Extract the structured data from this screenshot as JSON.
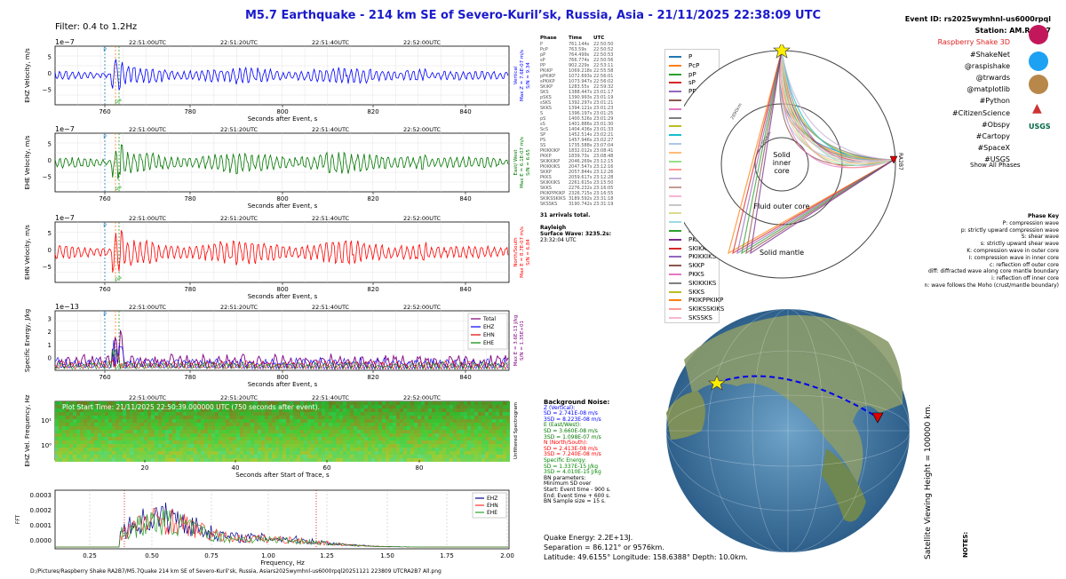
{
  "title": "M5.7 Earthquake - 214 km SE of Severo-Kuril’sk, Russia, Asia -  21/11/2025 22:38:09 UTC",
  "filter": "Filter: 0.4 to 1.2Hz",
  "filepath": "D:/Pictures/Raspberry Shake RA2B7/M5.7Quake 214 km SE of Severo-Kuril’sk, Russia, Asiars2025wymhnl-us6000rpql20251121 223809 UTCRA2B7 All.png",
  "header_right": {
    "event_id": "Event ID: rs2025wymhnl-us6000rpql",
    "station": "Station: AM.RA2B7",
    "rs3d": "Raspberry Shake 3D",
    "tags": [
      "#ShakeNet",
      "@raspishake",
      "@trwards",
      "@matplotlib",
      "#Python",
      "#CitizenScience",
      "#Obspy",
      "#Cartopy",
      "#SpaceX",
      "#USGS"
    ]
  },
  "colors": {
    "title": "#1a1acc",
    "ehz": "#0000ff",
    "ehe": "#007700",
    "ehn": "#ff0000",
    "energy_total": "#800080",
    "rs3d": "#d22"
  },
  "icons": [
    "raspberry-shake-icon",
    "twitter-icon",
    "matplotlib-icon",
    "cartopy-icon",
    "spacex-icon",
    "usgs-icon"
  ],
  "time_labels": [
    "22:51:00UTC",
    "22:51:20UTC",
    "22:51:40UTC",
    "22:52:00UTC"
  ],
  "seis_xticks": [
    "760",
    "780",
    "800",
    "820",
    "840"
  ],
  "xlabel_event": "Seconds after Event, s",
  "xlabel_trace": "Seconds after Start of Trace, s",
  "panels": {
    "ehz": {
      "exp": "1e−7",
      "ylabel": "EHZ Velocity, m/s",
      "yticks": [
        "5",
        "0",
        "−5"
      ],
      "side": "Vertical\nMax Z = 7.6E-07 m/s\nS/N = 9.34"
    },
    "ehe": {
      "exp": "1e−7",
      "ylabel": "EHE Velocity, m/s",
      "yticks": [
        "5",
        "0",
        "−5"
      ],
      "side": "East/ West\nMax E = 6.1E-07 m/s\nS/N = 6.65"
    },
    "ehn": {
      "exp": "1e−7",
      "ylabel": "EHN Velocity, m/s",
      "yticks": [
        "5",
        "0",
        "−5"
      ],
      "side": "North/South\nMax E = 8.7E-07 m/s\nS/N = 6.84"
    },
    "energy": {
      "exp": "1e−13",
      "ylabel": "Specific Energy, J/kg",
      "yticks": [
        "3",
        "2",
        "1",
        "0"
      ],
      "side": "Max E = 3.6E-13 J/kg\nS/N = 1.35E+01",
      "legend": [
        "Total",
        "EHZ",
        "EHN",
        "EHE"
      ]
    },
    "spec": {
      "ylabel": "EHZ Vel. Frequency, Hz",
      "yticks": [
        "10¹",
        "10⁰"
      ],
      "xticks": [
        "20",
        "40",
        "60",
        "80"
      ],
      "note": "Plot Start Time: 21/11/2025 22:50:39.000000 UTC (750 seconds after event).",
      "side": "Unfiltered Spectrogram"
    },
    "fft": {
      "ylabel": "FFT",
      "yticks": [
        "0.0003",
        "0.0002",
        "0.0001",
        "0.0000"
      ],
      "xticks": [
        "0.25",
        "0.50",
        "0.75",
        "1.00",
        "1.25",
        "1.50",
        "1.75",
        "2.00"
      ],
      "xlabel": "Frequency, Hz",
      "legend": [
        "EHZ",
        "EHN",
        "EHE"
      ]
    }
  },
  "phase_labels": [
    "P",
    "PcP",
    "pP"
  ],
  "arrivals": {
    "header": [
      "Phase",
      "Time",
      "UTC"
    ],
    "rows": [
      [
        "P",
        "761.144s",
        "22:50:50"
      ],
      [
        "PcP",
        "763.59s",
        "22:50:52"
      ],
      [
        "pP",
        "764.499s",
        "22:50:53"
      ],
      [
        "sP",
        "766.774s",
        "22:50:56"
      ],
      [
        "PP",
        "902.229s",
        "22:53:11"
      ],
      [
        "PKiKP",
        "1069.218s",
        "22:55:58"
      ],
      [
        "pPKiKP",
        "1072.693s",
        "22:56:01"
      ],
      [
        "sPKiKP",
        "1073.947s",
        "22:56:02"
      ],
      [
        "SKiKP",
        "1283.55s",
        "22:59:32"
      ],
      [
        "SKS",
        "1388.447s",
        "23:01:17"
      ],
      [
        "pSKS",
        "1390.993s",
        "23:01:19"
      ],
      [
        "sSKS",
        "1392.297s",
        "23:01:21"
      ],
      [
        "SKKS",
        "1394.121s",
        "23:01:23"
      ],
      [
        "S",
        "1396.197s",
        "23:01:25"
      ],
      [
        "pS",
        "1400.526s",
        "23:01:29"
      ],
      [
        "sS",
        "1401.886s",
        "23:01:30"
      ],
      [
        "ScS",
        "1404.436s",
        "23:01:33"
      ],
      [
        "SP",
        "1452.514s",
        "23:02:21"
      ],
      [
        "PS",
        "1457.946s",
        "23:02:27"
      ],
      [
        "SS",
        "1735.588s",
        "23:07:04"
      ],
      [
        "PKIKKIKP",
        "1832.012s",
        "23:08:41"
      ],
      [
        "PKKP",
        "1839.73s",
        "23:08:48"
      ],
      [
        "SKIKKIKP",
        "2046.269s",
        "23:12:15"
      ],
      [
        "PKIKKIKS",
        "2047.547s",
        "23:12:16"
      ],
      [
        "SKKP",
        "2057.844s",
        "23:12:26"
      ],
      [
        "PKKS",
        "2059.617s",
        "23:12:28"
      ],
      [
        "SKIKKIKS",
        "2261.615s",
        "23:15:50"
      ],
      [
        "SKKS",
        "2276.232s",
        "23:16:05"
      ],
      [
        "PKIKPPKIKP",
        "2326.715s",
        "23:16:55"
      ],
      [
        "SKIKSSKIKS",
        "3189.592s",
        "23:31:18"
      ],
      [
        "SKSSKS",
        "3190.742s",
        "23:31:19"
      ]
    ],
    "total": "31 arrivals total.",
    "rayleigh_label": "Rayleigh",
    "rayleigh": "Surface Wave: 3235.2s:",
    "rayleigh_time": "23:32:04 UTC"
  },
  "phase_legend": [
    {
      "name": "P",
      "color": "#1f77b4"
    },
    {
      "name": "PcP",
      "color": "#ff7f0e"
    },
    {
      "name": "pP",
      "color": "#2ca02c"
    },
    {
      "name": "sP",
      "color": "#d62728"
    },
    {
      "name": "PP",
      "color": "#9467bd"
    },
    {
      "name": "PKiKP",
      "color": "#8c564b"
    },
    {
      "name": "pPKiKP",
      "color": "#e377c2"
    },
    {
      "name": "sPKiKP",
      "color": "#7f7f7f"
    },
    {
      "name": "SKiKP",
      "color": "#bcbd22"
    },
    {
      "name": "SKS",
      "color": "#17becf"
    },
    {
      "name": "pSKS",
      "color": "#aec7e8"
    },
    {
      "name": "sSKS",
      "color": "#ffbb78"
    },
    {
      "name": "SKKS",
      "color": "#98df8a"
    },
    {
      "name": "S",
      "color": "#ff9896"
    },
    {
      "name": "pS",
      "color": "#c5b0d5"
    },
    {
      "name": "sS",
      "color": "#c49c94"
    },
    {
      "name": "ScS",
      "color": "#f7b6d2"
    },
    {
      "name": "SP",
      "color": "#c7c7c7"
    },
    {
      "name": "PS",
      "color": "#dbdb8d"
    },
    {
      "name": "SS",
      "color": "#9edae5"
    },
    {
      "name": "PKIKKIKP",
      "color": "#2ca02c"
    },
    {
      "name": "PKKP",
      "color": "#7b2d8e"
    },
    {
      "name": "SKIKKIKP",
      "color": "#d62728"
    },
    {
      "name": "PKIKKIKS",
      "color": "#9467bd"
    },
    {
      "name": "SKKP",
      "color": "#8c564b"
    },
    {
      "name": "PKKS",
      "color": "#e377c2"
    },
    {
      "name": "SKIKKIKS",
      "color": "#7f7f7f"
    },
    {
      "name": "SKKS",
      "color": "#bcbd22"
    },
    {
      "name": "PKIKPPKIKP",
      "color": "#ff7f0e"
    },
    {
      "name": "SKIKSSKIKS",
      "color": "#ff9896"
    },
    {
      "name": "SKSSKS",
      "color": "#f7b6d2"
    }
  ],
  "earth": {
    "inner": "Solid\ninner\ncore",
    "outer": "Fluid outer core",
    "mantle": "Solid mantle",
    "station": "RA2B7",
    "r1": "1200km",
    "r2": "2890km"
  },
  "show_all": "Show All Phases",
  "phase_key": {
    "title": "Phase Key",
    "lines": [
      "P:   compression wave",
      "p:   strictly upward compression wave",
      "S:   shear wave",
      "s:   strictly upward shear wave",
      "K:   compression wave in outer core",
      "I:   compression wave in inner core",
      "c:   reflection off outer core",
      "diff:  diffracted wave along core mantle boundary",
      "i:   reflection off inner core",
      "n:   wave follows the Moho (crust/mantle boundary)"
    ]
  },
  "background_noise": {
    "title": "Background Noise:",
    "lines": [
      {
        "t": "Z (Vertical):",
        "c": "#0000ff"
      },
      {
        "t": "SD = 2.741E-08 m/s",
        "c": "#0000ff"
      },
      {
        "t": "3SD = 8.223E-08 m/s",
        "c": "#0000ff"
      },
      {
        "t": "E (East/West):",
        "c": "#007700"
      },
      {
        "t": "SD = 3.660E-08 m/s",
        "c": "#007700"
      },
      {
        "t": "3SD = 1.098E-07 m/s",
        "c": "#007700"
      },
      {
        "t": "N (North/South):",
        "c": "#ff0000"
      },
      {
        "t": "SD = 2.413E-08 m/s",
        "c": "#ff0000"
      },
      {
        "t": "3SD = 7.240E-08 m/s",
        "c": "#ff0000"
      },
      {
        "t": "Specific Energy:",
        "c": "#008800"
      },
      {
        "t": "SD = 1.337E-15 J/kg",
        "c": "#008800"
      },
      {
        "t": "3SD = 4.010E-15 J/kg",
        "c": "#008800"
      },
      {
        "t": "BN parameters:",
        "c": "#000"
      },
      {
        "t": "Minimum SD over",
        "c": "#000"
      },
      {
        "t": "Start: Event time - 900 s.",
        "c": "#000"
      },
      {
        "t": "End: Event time + 600 s.",
        "c": "#000"
      },
      {
        "t": "BN Sample size = 15 s.",
        "c": "#000"
      }
    ]
  },
  "quake": {
    "energy": "Quake Energy: 2.2E+13J.",
    "separation": "Separation = 86.121° or 9576km.",
    "location": "Latitude: 49.6155° Longitude: 158.6388° Depth: 10.0km."
  },
  "globe_label": "Satellite Viewing Height = 100000 km.",
  "notes": "NOTES:"
}
